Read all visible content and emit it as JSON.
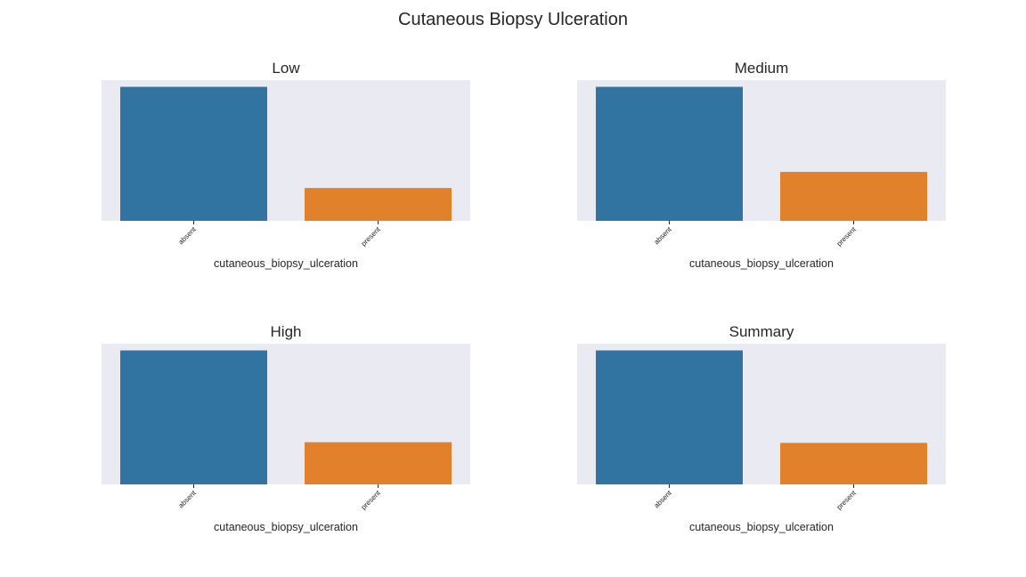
{
  "figure": {
    "title": "Cutaneous Biopsy Ulceration"
  },
  "colors": {
    "absent": "#3274a1",
    "present": "#e1812c",
    "plot_background": "#eaeaf2"
  },
  "chart_data": [
    {
      "type": "bar",
      "title": "Low",
      "xlabel": "cutaneous_biopsy_ulceration",
      "ylabel": "",
      "categories": [
        "absent",
        "present"
      ],
      "values": [
        1.0,
        0.245
      ],
      "ylim": [
        0,
        1.05
      ],
      "grid": false
    },
    {
      "type": "bar",
      "title": "Medium",
      "xlabel": "cutaneous_biopsy_ulceration",
      "ylabel": "",
      "categories": [
        "absent",
        "present"
      ],
      "values": [
        1.0,
        0.365
      ],
      "ylim": [
        0,
        1.05
      ],
      "grid": false
    },
    {
      "type": "bar",
      "title": "High",
      "xlabel": "cutaneous_biopsy_ulceration",
      "ylabel": "",
      "categories": [
        "absent",
        "present"
      ],
      "values": [
        1.0,
        0.315
      ],
      "ylim": [
        0,
        1.05
      ],
      "grid": false
    },
    {
      "type": "bar",
      "title": "Summary",
      "xlabel": "cutaneous_biopsy_ulceration",
      "ylabel": "",
      "categories": [
        "absent",
        "present"
      ],
      "values": [
        1.0,
        0.31
      ],
      "ylim": [
        0,
        1.05
      ],
      "grid": false
    }
  ]
}
